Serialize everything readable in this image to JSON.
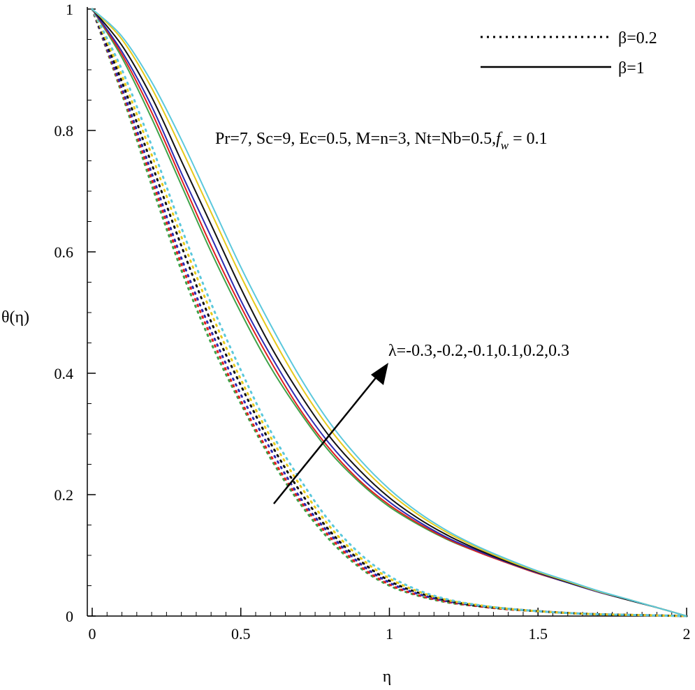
{
  "chart_data": {
    "type": "line",
    "title": "",
    "xlabel": "η",
    "ylabel": "θ(η)",
    "xlim": [
      0,
      2
    ],
    "ylim": [
      0,
      1
    ],
    "xticks": [
      "0",
      "0.5",
      "1",
      "1.5",
      "2"
    ],
    "yticks": [
      "0",
      "0.2",
      "0.4",
      "0.6",
      "0.8",
      "1"
    ],
    "legend": {
      "placement": "top-right",
      "entries": [
        {
          "label": "β=0.2",
          "style": "dotted"
        },
        {
          "label": "β=1",
          "style": "solid"
        }
      ]
    },
    "annotations": {
      "params": "Pr=7, Sc=9, Ec=0.5, M=n=3, Nt=Nb=0.5,",
      "fw_symbol": "f",
      "fw_sub": "w",
      "fw_value": "= 0.1",
      "lambda": "λ=-0.3,-0.2,-0.1,0.1,0.2,0.3"
    },
    "x": [
      0,
      0.1,
      0.2,
      0.3,
      0.4,
      0.5,
      0.6,
      0.7,
      0.8,
      0.9,
      1.0,
      1.1,
      1.2,
      1.3,
      1.4,
      1.5,
      1.6,
      1.7,
      1.8,
      1.9,
      2.0
    ],
    "series": [
      {
        "group": "β=0.2",
        "style": "dotted",
        "color": "#3fa34a",
        "values": [
          1,
          0.86,
          0.71,
          0.57,
          0.45,
          0.35,
          0.26,
          0.185,
          0.125,
          0.08,
          0.05,
          0.033,
          0.022,
          0.016,
          0.011,
          0.008,
          0.005,
          0.003,
          0.002,
          0.001,
          0
        ]
      },
      {
        "group": "β=0.2",
        "style": "dotted",
        "color": "#e02020",
        "values": [
          1,
          0.865,
          0.72,
          0.58,
          0.46,
          0.355,
          0.265,
          0.19,
          0.13,
          0.083,
          0.052,
          0.034,
          0.023,
          0.016,
          0.011,
          0.008,
          0.005,
          0.003,
          0.002,
          0.001,
          0
        ]
      },
      {
        "group": "β=0.2",
        "style": "dotted",
        "color": "#2b2bb0",
        "values": [
          1,
          0.87,
          0.73,
          0.59,
          0.47,
          0.365,
          0.275,
          0.195,
          0.135,
          0.087,
          0.055,
          0.036,
          0.024,
          0.017,
          0.012,
          0.008,
          0.005,
          0.003,
          0.002,
          0.001,
          0
        ]
      },
      {
        "group": "β=0.2",
        "style": "dotted",
        "color": "#111111",
        "values": [
          1,
          0.88,
          0.745,
          0.61,
          0.485,
          0.38,
          0.285,
          0.205,
          0.14,
          0.092,
          0.058,
          0.038,
          0.025,
          0.017,
          0.012,
          0.008,
          0.005,
          0.003,
          0.002,
          0.001,
          0
        ]
      },
      {
        "group": "β=0.2",
        "style": "dotted",
        "color": "#e6c81a",
        "values": [
          1,
          0.89,
          0.76,
          0.625,
          0.5,
          0.39,
          0.295,
          0.215,
          0.147,
          0.097,
          0.062,
          0.04,
          0.026,
          0.018,
          0.012,
          0.008,
          0.005,
          0.003,
          0.002,
          0.001,
          0
        ]
      },
      {
        "group": "β=0.2",
        "style": "dotted",
        "color": "#5bc8dc",
        "values": [
          1,
          0.9,
          0.775,
          0.64,
          0.515,
          0.405,
          0.305,
          0.225,
          0.155,
          0.103,
          0.066,
          0.042,
          0.027,
          0.018,
          0.012,
          0.008,
          0.005,
          0.003,
          0.002,
          0.001,
          0
        ]
      },
      {
        "group": "β=1",
        "style": "solid",
        "color": "#3fa34a",
        "values": [
          1,
          0.92,
          0.82,
          0.71,
          0.6,
          0.5,
          0.41,
          0.335,
          0.27,
          0.22,
          0.18,
          0.15,
          0.125,
          0.105,
          0.087,
          0.07,
          0.055,
          0.04,
          0.027,
          0.014,
          0
        ]
      },
      {
        "group": "β=1",
        "style": "solid",
        "color": "#e02020",
        "values": [
          1,
          0.925,
          0.83,
          0.72,
          0.61,
          0.51,
          0.42,
          0.34,
          0.275,
          0.223,
          0.183,
          0.152,
          0.126,
          0.105,
          0.087,
          0.07,
          0.055,
          0.04,
          0.027,
          0.014,
          0
        ]
      },
      {
        "group": "β=1",
        "style": "solid",
        "color": "#2b2bb0",
        "values": [
          1,
          0.93,
          0.84,
          0.73,
          0.625,
          0.52,
          0.43,
          0.35,
          0.283,
          0.23,
          0.188,
          0.155,
          0.128,
          0.107,
          0.088,
          0.071,
          0.055,
          0.04,
          0.027,
          0.014,
          0
        ]
      },
      {
        "group": "β=1",
        "style": "solid",
        "color": "#111111",
        "values": [
          1,
          0.94,
          0.855,
          0.75,
          0.645,
          0.54,
          0.445,
          0.365,
          0.295,
          0.24,
          0.195,
          0.16,
          0.132,
          0.109,
          0.089,
          0.072,
          0.056,
          0.041,
          0.027,
          0.014,
          0
        ]
      },
      {
        "group": "β=1",
        "style": "solid",
        "color": "#e6c81a",
        "values": [
          1,
          0.95,
          0.87,
          0.77,
          0.665,
          0.56,
          0.465,
          0.38,
          0.308,
          0.25,
          0.203,
          0.166,
          0.136,
          0.112,
          0.091,
          0.073,
          0.057,
          0.041,
          0.028,
          0.014,
          0
        ]
      },
      {
        "group": "β=1",
        "style": "solid",
        "color": "#5bc8dc",
        "values": [
          1,
          0.955,
          0.88,
          0.785,
          0.68,
          0.575,
          0.48,
          0.393,
          0.318,
          0.258,
          0.209,
          0.17,
          0.139,
          0.114,
          0.093,
          0.074,
          0.058,
          0.042,
          0.028,
          0.014,
          0
        ]
      }
    ]
  }
}
